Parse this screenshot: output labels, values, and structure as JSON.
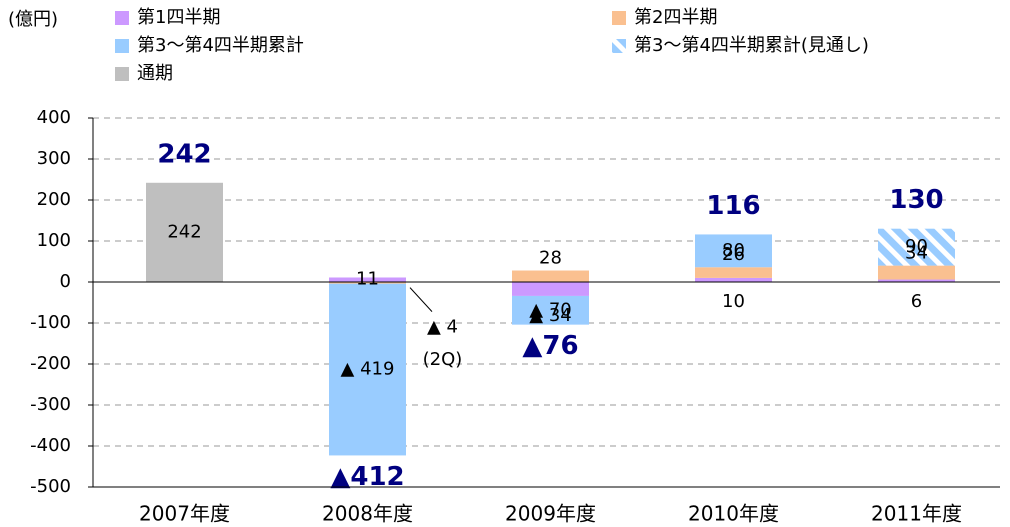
{
  "chart_data": {
    "type": "bar",
    "stacked": true,
    "unit_label": "(億円)",
    "categories": [
      "2007年度",
      "2008年度",
      "2009年度",
      "2010年度",
      "2011年度"
    ],
    "series": [
      {
        "name": "第1四半期",
        "color": "#cc99ff",
        "values": [
          null,
          11,
          -34,
          10,
          6
        ],
        "value_labels": [
          null,
          "11",
          "▲ 34",
          "10",
          "6"
        ]
      },
      {
        "name": "第2四半期",
        "color": "#fac090",
        "values": [
          null,
          -4,
          28,
          26,
          34
        ],
        "value_labels": [
          null,
          "▲ 4",
          "28",
          "26",
          "34"
        ]
      },
      {
        "name": "第3～第4四半期累計",
        "color": "#99ccff",
        "values": [
          null,
          -419,
          -70,
          80,
          null
        ],
        "value_labels": [
          null,
          "▲ 419",
          "▲ 70",
          "80",
          null
        ]
      },
      {
        "name": "第3～第4四半期累計(見通し)",
        "color": "#99ccff",
        "pattern": "hatch",
        "values": [
          null,
          null,
          null,
          null,
          90
        ],
        "value_labels": [
          null,
          null,
          null,
          null,
          "90"
        ]
      },
      {
        "name": "通期",
        "color": "#bfbfbf",
        "values": [
          242,
          null,
          null,
          null,
          null
        ],
        "value_labels": [
          "242",
          null,
          null,
          null,
          null
        ]
      }
    ],
    "totals": {
      "values": [
        242,
        -412,
        -76,
        116,
        130
      ],
      "value_labels": [
        "242",
        "▲412",
        "▲76",
        "116",
        "130"
      ]
    },
    "annotations": [
      "(2Q)"
    ],
    "ylim": [
      -500,
      400
    ],
    "yticks": [
      -500,
      -400,
      -300,
      -200,
      -100,
      0,
      100,
      200,
      300,
      400
    ],
    "grid": true
  }
}
